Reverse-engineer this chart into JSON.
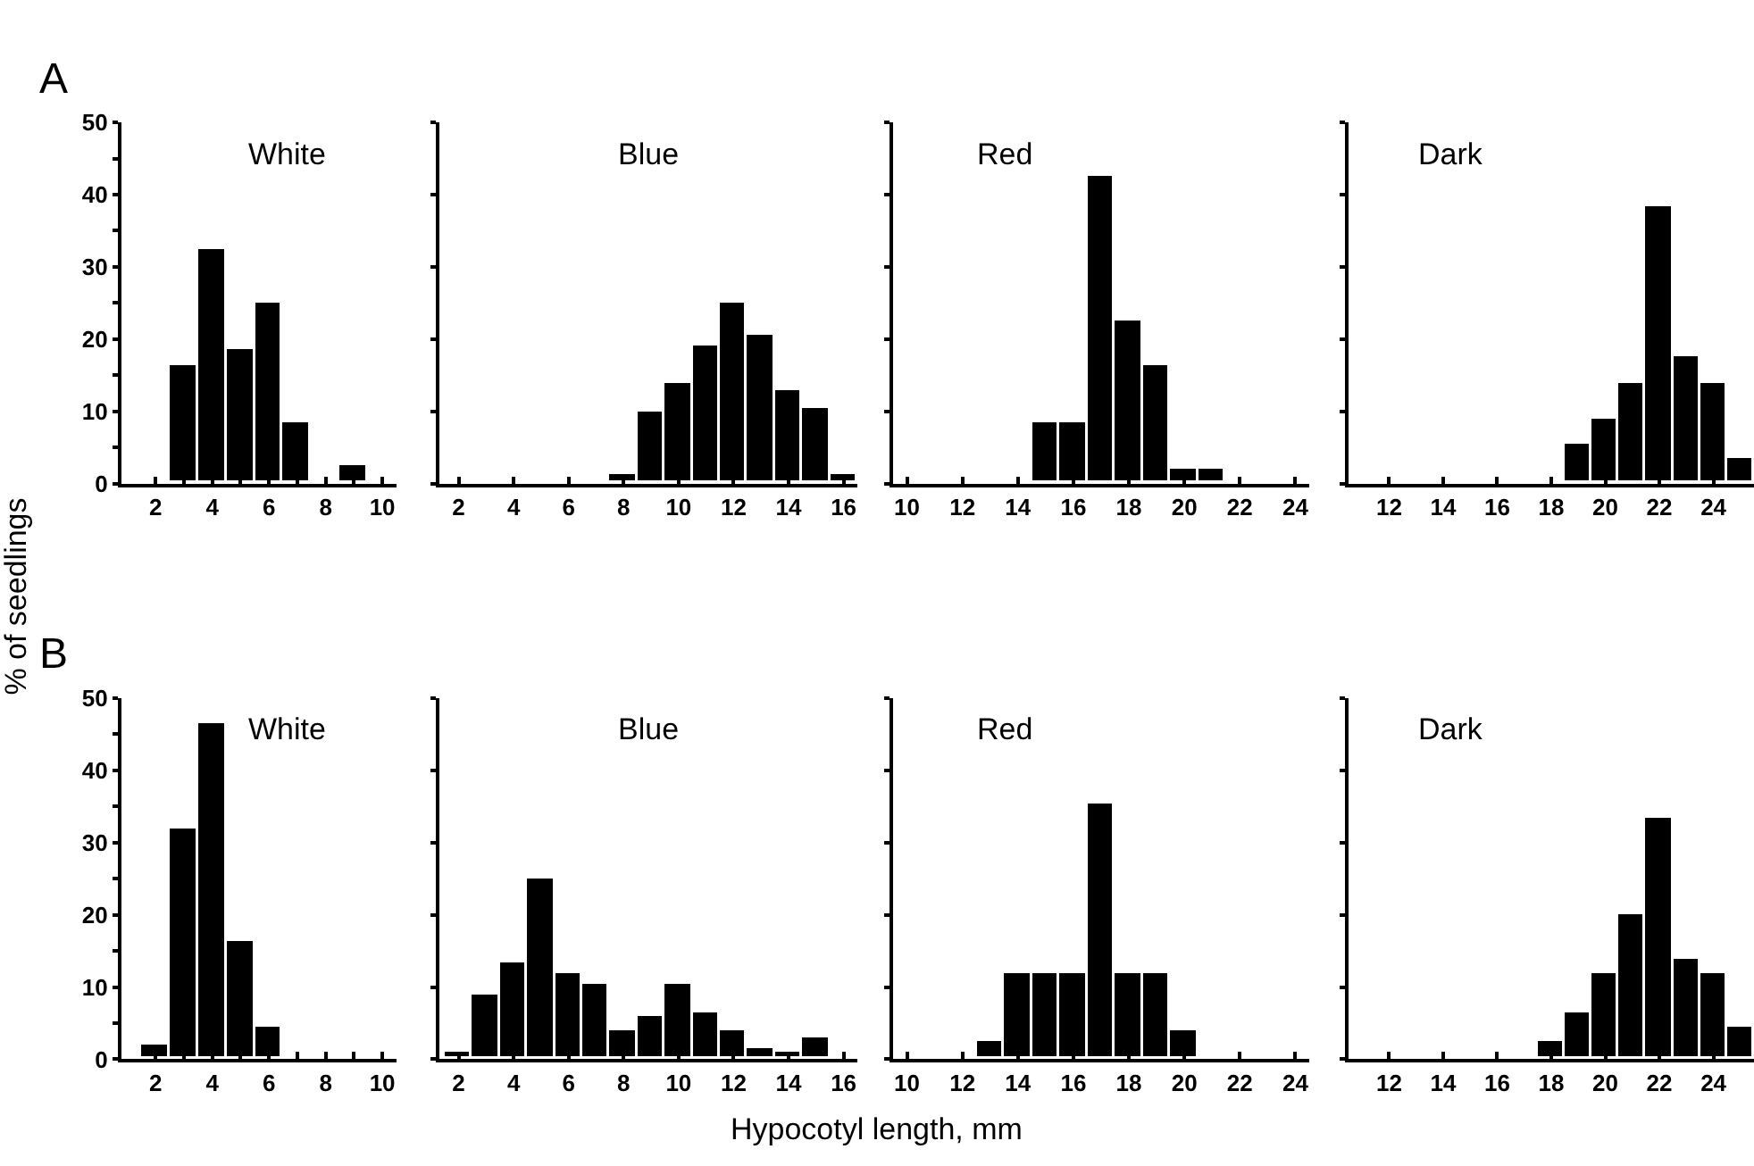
{
  "chart_data": [
    {
      "type": "histogram",
      "title": "White",
      "annotations": [
        "A"
      ],
      "ylabel": "% of seedlings",
      "bins": [
        1.5,
        2.5,
        3.5,
        4.5,
        5.5,
        6.5,
        7.5,
        8.5,
        9.5,
        10.5
      ],
      "values": [
        0,
        16.5,
        32.5,
        18.5,
        25,
        8.5,
        0,
        2.5,
        0
      ],
      "color": "#000000",
      "xlim": [
        0.8,
        10.5
      ],
      "xticks": [
        2,
        {
          "value": 3,
          "label": null
        },
        4,
        {
          "value": 5,
          "label": null
        },
        6,
        {
          "value": 7,
          "label": null
        },
        8,
        {
          "value": 9,
          "label": null
        },
        10
      ],
      "ylim": [
        0,
        50
      ],
      "yticks": [
        0,
        {
          "value": 5,
          "label": null
        },
        10,
        {
          "value": 15,
          "label": null
        },
        20,
        {
          "value": 25,
          "label": null
        },
        30,
        {
          "value": 35,
          "label": null
        },
        40,
        {
          "value": 45,
          "label": null
        },
        50
      ]
    },
    {
      "type": "histogram",
      "title": "Blue",
      "bins": [
        1.5,
        2.5,
        3.5,
        4.5,
        5.5,
        6.5,
        7.5,
        8.5,
        9.5,
        10.5,
        11.5,
        12.5,
        13.5,
        14.5,
        15.5,
        16.5
      ],
      "values": [
        0,
        0,
        0,
        0,
        0,
        0,
        1.2,
        10,
        14,
        19,
        25,
        20.5,
        13,
        10.5,
        1.2
      ],
      "color": "#000000",
      "xlim": [
        1.3,
        16.5
      ],
      "xticks": [
        2,
        4,
        6,
        8,
        10,
        12,
        14,
        16
      ],
      "ylim": [
        0,
        50
      ],
      "yticks": [
        {
          "value": 0,
          "label": null
        },
        {
          "value": 10,
          "label": null
        },
        {
          "value": 20,
          "label": null
        },
        {
          "value": 30,
          "label": null
        },
        {
          "value": 40,
          "label": null
        },
        {
          "value": 50,
          "label": null
        }
      ],
      "tick_labels": "x"
    },
    {
      "type": "histogram",
      "title": "Red",
      "bins": [
        9.5,
        10.5,
        11.5,
        12.5,
        13.5,
        14.5,
        15.5,
        16.5,
        17.5,
        18.5,
        19.5,
        20.5,
        21.5,
        22.5,
        23.5,
        24.5
      ],
      "values": [
        0,
        0,
        0,
        0,
        0,
        8.5,
        8.5,
        42.5,
        22.5,
        16.5,
        2,
        2,
        0,
        0,
        0
      ],
      "color": "#000000",
      "xlim": [
        9.5,
        24.5
      ],
      "xticks": [
        10,
        12,
        14,
        16,
        18,
        20,
        22,
        24
      ],
      "ylim": [
        0,
        50
      ],
      "yticks": [
        {
          "value": 0,
          "label": null
        },
        {
          "value": 10,
          "label": null
        },
        {
          "value": 20,
          "label": null
        },
        {
          "value": 30,
          "label": null
        },
        {
          "value": 40,
          "label": null
        },
        {
          "value": 50,
          "label": null
        }
      ],
      "tick_labels": "x"
    },
    {
      "type": "histogram",
      "title": "Dark",
      "bins": [
        10.5,
        11.5,
        12.5,
        13.5,
        14.5,
        15.5,
        16.5,
        17.5,
        18.5,
        19.5,
        20.5,
        21.5,
        22.5,
        23.5,
        24.5,
        25.5
      ],
      "values": [
        0,
        0,
        0,
        0,
        0,
        0,
        0,
        0,
        5.5,
        9,
        14,
        38.5,
        17.5,
        14,
        3.5
      ],
      "color": "#000000",
      "xlim": [
        10.5,
        25.5
      ],
      "xticks": [
        12,
        14,
        16,
        18,
        20,
        22,
        24
      ],
      "ylim": [
        0,
        50
      ],
      "yticks": [
        {
          "value": 0,
          "label": null
        },
        {
          "value": 10,
          "label": null
        },
        {
          "value": 20,
          "label": null
        },
        {
          "value": 30,
          "label": null
        },
        {
          "value": 40,
          "label": null
        },
        {
          "value": 50,
          "label": null
        }
      ],
      "tick_labels": "x"
    },
    {
      "type": "histogram",
      "title": "White",
      "annotations": [
        "B"
      ],
      "bins": [
        1.5,
        2.5,
        3.5,
        4.5,
        5.5,
        6.5,
        7.5,
        8.5,
        9.5,
        10.5
      ],
      "values": [
        2,
        32,
        46.5,
        16.5,
        4.5,
        0,
        0,
        0,
        0
      ],
      "color": "#000000",
      "xlim": [
        0.8,
        10.5
      ],
      "xticks": [
        2,
        {
          "value": 3,
          "label": null
        },
        4,
        {
          "value": 5,
          "label": null
        },
        6,
        {
          "value": 7,
          "label": null
        },
        8,
        {
          "value": 9,
          "label": null
        },
        10
      ],
      "ylim": [
        0,
        50
      ],
      "yticks": [
        0,
        {
          "value": 5,
          "label": null
        },
        10,
        {
          "value": 15,
          "label": null
        },
        20,
        {
          "value": 25,
          "label": null
        },
        30,
        {
          "value": 35,
          "label": null
        },
        40,
        {
          "value": 45,
          "label": null
        },
        50
      ]
    },
    {
      "type": "histogram",
      "title": "Blue",
      "xlabel": "Hypocotyl length, mm",
      "bins": [
        1.5,
        2.5,
        3.5,
        4.5,
        5.5,
        6.5,
        7.5,
        8.5,
        9.5,
        10.5,
        11.5,
        12.5,
        13.5,
        14.5,
        15.5,
        16.5
      ],
      "values": [
        1,
        9,
        13.5,
        25,
        12,
        10.5,
        4,
        6,
        10.5,
        6.5,
        4,
        1.5,
        1,
        3,
        0
      ],
      "color": "#000000",
      "xlim": [
        1.3,
        16.5
      ],
      "xticks": [
        2,
        4,
        6,
        8,
        10,
        12,
        14,
        16
      ],
      "ylim": [
        0,
        50
      ],
      "yticks": [
        {
          "value": 0,
          "label": null
        },
        {
          "value": 10,
          "label": null
        },
        {
          "value": 20,
          "label": null
        },
        {
          "value": 30,
          "label": null
        },
        {
          "value": 40,
          "label": null
        },
        {
          "value": 50,
          "label": null
        }
      ],
      "tick_labels": "x"
    },
    {
      "type": "histogram",
      "title": "Red",
      "bins": [
        9.5,
        10.5,
        11.5,
        12.5,
        13.5,
        14.5,
        15.5,
        16.5,
        17.5,
        18.5,
        19.5,
        20.5,
        21.5,
        22.5,
        23.5,
        24.5
      ],
      "values": [
        0,
        0,
        0,
        2.5,
        12,
        12,
        12,
        35.5,
        12,
        12,
        4,
        0,
        0,
        0,
        0
      ],
      "color": "#000000",
      "xlim": [
        9.5,
        24.5
      ],
      "xticks": [
        10,
        12,
        14,
        16,
        18,
        20,
        22,
        24
      ],
      "ylim": [
        0,
        50
      ],
      "yticks": [
        {
          "value": 0,
          "label": null
        },
        {
          "value": 10,
          "label": null
        },
        {
          "value": 20,
          "label": null
        },
        {
          "value": 30,
          "label": null
        },
        {
          "value": 40,
          "label": null
        },
        {
          "value": 50,
          "label": null
        }
      ],
      "tick_labels": "x"
    },
    {
      "type": "histogram",
      "title": "Dark",
      "bins": [
        10.5,
        11.5,
        12.5,
        13.5,
        14.5,
        15.5,
        16.5,
        17.5,
        18.5,
        19.5,
        20.5,
        21.5,
        22.5,
        23.5,
        24.5,
        25.5
      ],
      "values": [
        0,
        0,
        0,
        0,
        0,
        0,
        0,
        2.5,
        6.5,
        12,
        20,
        33.5,
        14,
        12,
        4.5
      ],
      "color": "#000000",
      "xlim": [
        10.5,
        25.5
      ],
      "xticks": [
        12,
        14,
        16,
        18,
        20,
        22,
        24
      ],
      "ylim": [
        0,
        50
      ],
      "yticks": [
        {
          "value": 0,
          "label": null
        },
        {
          "value": 10,
          "label": null
        },
        {
          "value": 20,
          "label": null
        },
        {
          "value": 30,
          "label": null
        },
        {
          "value": 40,
          "label": null
        },
        {
          "value": 50,
          "label": null
        }
      ],
      "tick_labels": "x"
    }
  ]
}
